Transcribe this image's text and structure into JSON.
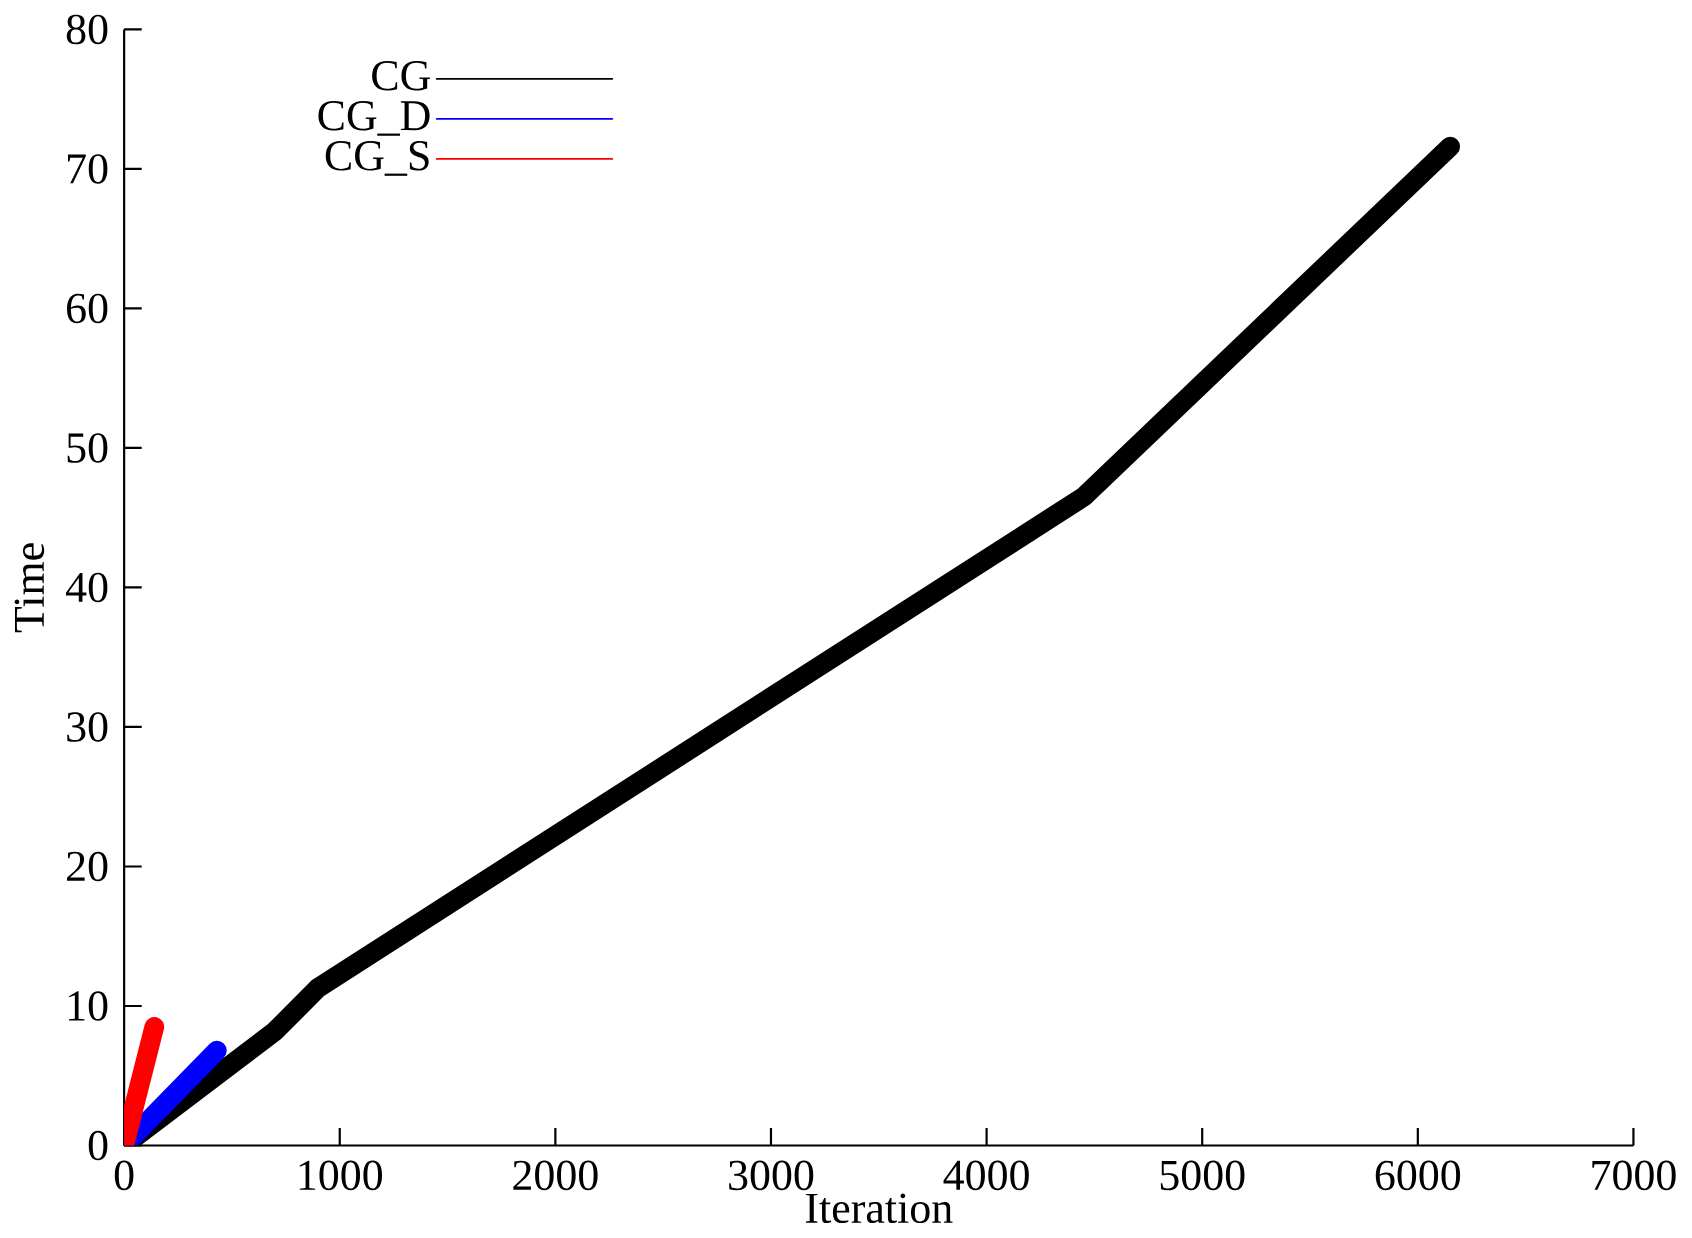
{
  "chart_data": {
    "type": "line",
    "xlabel": "Iteration",
    "ylabel": "Time",
    "xlim": [
      0,
      7000
    ],
    "ylim": [
      0,
      80
    ],
    "xticks": [
      0,
      1000,
      2000,
      3000,
      4000,
      5000,
      6000,
      7000
    ],
    "yticks": [
      0,
      10,
      20,
      30,
      40,
      50,
      60,
      70,
      80
    ],
    "legend": "top left",
    "grid": false,
    "series": [
      {
        "name": "CG",
        "color": "#000000",
        "x": [
          0,
          700,
          900,
          4450,
          6150
        ],
        "values": [
          0,
          8.2,
          11.3,
          46.5,
          71.6
        ]
      },
      {
        "name": "CG_D",
        "color": "#0000ff",
        "x": [
          0,
          430
        ],
        "values": [
          0,
          6.8
        ]
      },
      {
        "name": "CG_S",
        "color": "#ff0000",
        "x": [
          0,
          140
        ],
        "values": [
          0,
          8.5
        ]
      }
    ]
  }
}
